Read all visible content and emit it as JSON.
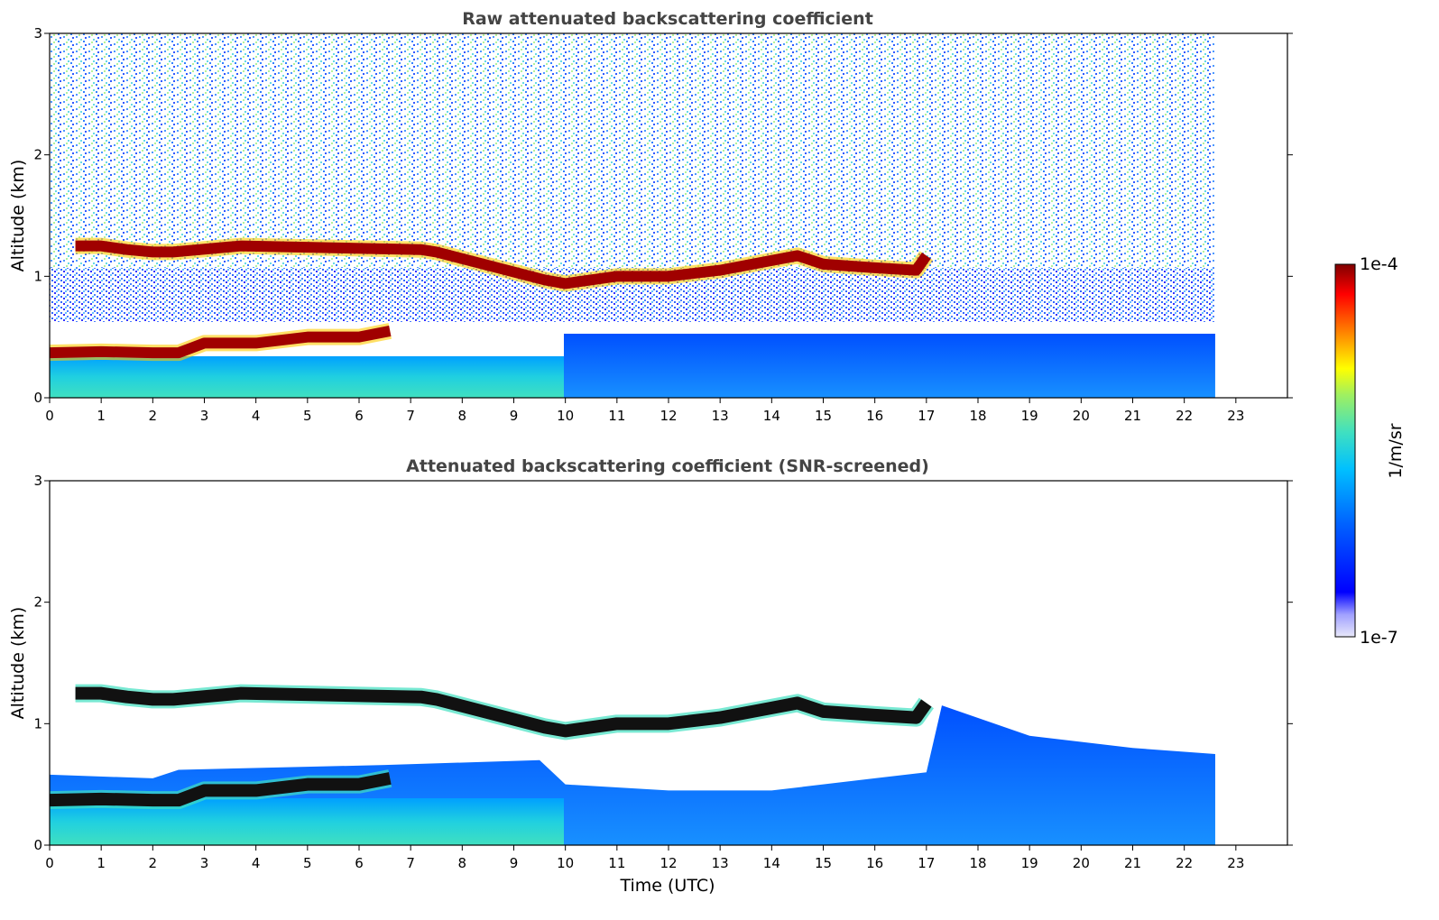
{
  "chart_data": [
    {
      "type": "heatmap",
      "title": "Raw attenuated backscattering coefficient",
      "xlabel": "",
      "ylabel": "Altitude (km)",
      "xlim": [
        0,
        24
      ],
      "ylim": [
        0,
        3
      ],
      "xticks": [
        "0",
        "1",
        "2",
        "3",
        "4",
        "5",
        "6",
        "7",
        "8",
        "9",
        "10",
        "11",
        "12",
        "13",
        "14",
        "15",
        "16",
        "17",
        "18",
        "19",
        "20",
        "21",
        "22",
        "23"
      ],
      "yticks": [
        "0",
        "1",
        "2",
        "3"
      ],
      "data_end_time": 22.6,
      "layers": [
        {
          "name": "boundary layer top",
          "x": [
            0,
            1,
            2,
            2.5,
            3,
            4,
            5,
            6,
            6.6
          ],
          "y": [
            0.37,
            0.38,
            0.37,
            0.37,
            0.45,
            0.45,
            0.5,
            0.5,
            0.55
          ]
        },
        {
          "name": "lower cloud",
          "x": [
            0.5,
            1,
            1.5,
            2,
            2.4,
            3.7,
            7.2,
            7.5,
            9.6,
            10,
            11,
            12,
            13,
            14,
            14.5,
            15,
            16,
            16.8,
            17.0
          ],
          "y": [
            1.25,
            1.25,
            1.22,
            1.2,
            1.2,
            1.25,
            1.22,
            1.2,
            0.97,
            0.94,
            1.0,
            1.0,
            1.05,
            1.13,
            1.17,
            1.1,
            1.07,
            1.05,
            1.17
          ]
        }
      ]
    },
    {
      "type": "heatmap",
      "title": "Attenuated backscattering coefficient (SNR-screened)",
      "xlabel": "Time (UTC)",
      "ylabel": "Altitude (km)",
      "xlim": [
        0,
        24
      ],
      "ylim": [
        0,
        3
      ],
      "xticks": [
        "0",
        "1",
        "2",
        "3",
        "4",
        "5",
        "6",
        "7",
        "8",
        "9",
        "10",
        "11",
        "12",
        "13",
        "14",
        "15",
        "16",
        "17",
        "18",
        "19",
        "20",
        "21",
        "22",
        "23"
      ],
      "yticks": [
        "0",
        "1",
        "2",
        "3"
      ],
      "data_end_time": 22.6,
      "valid_region_top": {
        "x": [
          0,
          2,
          2.5,
          6.5,
          9.5,
          10,
          12,
          14,
          16,
          17,
          17.3,
          19,
          21,
          22.6
        ],
        "y": [
          0.58,
          0.55,
          0.62,
          0.66,
          0.7,
          0.5,
          0.45,
          0.45,
          0.55,
          0.6,
          1.15,
          0.9,
          0.8,
          0.75
        ]
      }
    }
  ],
  "colorbar": {
    "label": "1/m/sr",
    "min_label": "1e-7",
    "max_label": "1e-4",
    "scale": "log",
    "stops": [
      "#e8e8fa",
      "#a0a0ff",
      "#0000ff",
      "#0060ff",
      "#00c0ff",
      "#40e0c0",
      "#a0f060",
      "#ffff00",
      "#ff8000",
      "#ff0000",
      "#800000"
    ]
  }
}
